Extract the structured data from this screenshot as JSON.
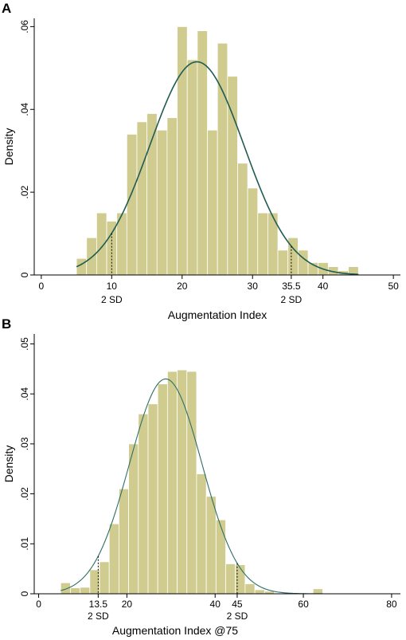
{
  "chart_data": [
    {
      "panel": "A",
      "type": "bar",
      "xlabel": "Augmentation  Index",
      "ylabel": "Density",
      "xlim": [
        -1,
        51
      ],
      "ylim": [
        0,
        0.062
      ],
      "xticks": [
        0,
        10,
        20,
        30,
        35.5,
        40,
        50
      ],
      "xtick_labels": [
        "0",
        "10",
        "20",
        "30",
        "35.5",
        "40",
        "50"
      ],
      "yticks": [
        0,
        0.02,
        0.04,
        0.06
      ],
      "ytick_labels": [
        "0",
        ".02",
        ".04",
        ".06"
      ],
      "bin_start": 5,
      "bin_width": 1.43,
      "values": [
        0.004,
        0.009,
        0.015,
        0.013,
        0.015,
        0.034,
        0.037,
        0.039,
        0.035,
        0.038,
        0.06,
        0.052,
        0.059,
        0.035,
        0.056,
        0.048,
        0.027,
        0.021,
        0.015,
        0.015,
        0.006,
        0.009,
        0.006,
        0.003,
        0.003,
        0.002,
        0.001,
        0.002
      ],
      "curve": {
        "mean": 22.1,
        "sd": 6.7,
        "peak": 0.0515
      },
      "sd_markers": [
        {
          "x": 10,
          "label": "2 SD"
        },
        {
          "x": 35.5,
          "label": "2 SD"
        }
      ],
      "grid": false,
      "colors": {
        "bar": "#d0cc8f",
        "curve": "#1f5c52"
      }
    },
    {
      "panel": "B",
      "type": "bar",
      "xlabel": "Augmentation  Index @75",
      "ylabel": "Density",
      "xlim": [
        -1,
        82
      ],
      "ylim": [
        0,
        0.052
      ],
      "xticks": [
        0,
        13.5,
        20,
        40,
        45,
        60,
        80
      ],
      "xtick_labels": [
        "0",
        "13.5",
        "20",
        "40",
        "45",
        "60",
        "80"
      ],
      "yticks": [
        0,
        0.01,
        0.02,
        0.03,
        0.04,
        0.05
      ],
      "ytick_labels": [
        "0",
        ".01",
        ".02",
        ".03",
        ".04",
        ".05"
      ],
      "bin_start": 5,
      "bin_width": 2.2,
      "values": [
        0.0022,
        0.0012,
        0.0013,
        0.0048,
        0.0064,
        0.014,
        0.021,
        0.03,
        0.036,
        0.038,
        0.042,
        0.0445,
        0.0448,
        0.0445,
        0.024,
        0.0195,
        0.0148,
        0.006,
        0.0058,
        0.002,
        0.0008,
        0.0005,
        0,
        0,
        0,
        0,
        0.001
      ],
      "curve": {
        "mean": 28.8,
        "sd": 8.2,
        "peak": 0.043
      },
      "sd_markers": [
        {
          "x": 13.5,
          "label": "2 SD"
        },
        {
          "x": 45,
          "label": "2 SD"
        }
      ],
      "grid": false,
      "colors": {
        "bar": "#d0cc8f",
        "curve": "#2e6e66"
      }
    }
  ],
  "panels": {
    "a": {
      "letter": "A"
    },
    "b": {
      "letter": "B"
    }
  }
}
